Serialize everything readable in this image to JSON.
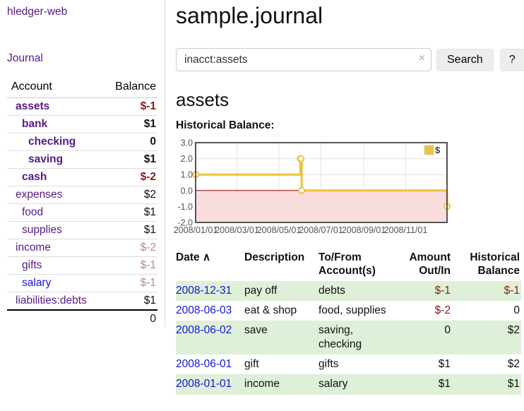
{
  "app": {
    "title": "hledger-web",
    "nav_journal": "Journal"
  },
  "sidebar": {
    "accounts_header": {
      "account": "Account",
      "balance": "Balance"
    },
    "accounts": [
      {
        "name": "assets",
        "depth": 1,
        "balance": "$-1",
        "bold": true,
        "negative": "strong"
      },
      {
        "name": "bank",
        "depth": 2,
        "balance": "$1",
        "bold": true
      },
      {
        "name": "checking",
        "depth": 3,
        "balance": "0",
        "bold": true
      },
      {
        "name": "saving",
        "depth": 3,
        "balance": "$1",
        "bold": true
      },
      {
        "name": "cash",
        "depth": 2,
        "balance": "$-2",
        "bold": true,
        "negative": "strong"
      },
      {
        "name": "expenses",
        "depth": 1,
        "balance": "$2"
      },
      {
        "name": "food",
        "depth": 2,
        "balance": "$1"
      },
      {
        "name": "supplies",
        "depth": 2,
        "balance": "$1"
      },
      {
        "name": "income",
        "depth": 1,
        "balance": "$-2",
        "negative": "soft"
      },
      {
        "name": "gifts",
        "depth": 2,
        "balance": "$-1",
        "negative": "soft"
      },
      {
        "name": "salary",
        "depth": 2,
        "balance": "$-1",
        "negative": "soft",
        "link_color": "blue"
      },
      {
        "name": "liabilities:debts",
        "depth": 1,
        "balance": "$1"
      }
    ],
    "total": "0"
  },
  "header": {
    "title": "sample.journal"
  },
  "search": {
    "value": "inacct:assets",
    "clear_icon": "×",
    "button": "Search",
    "help_button": "?"
  },
  "account_page": {
    "heading": "assets",
    "chart_label": "Historical Balance:"
  },
  "chart_data": {
    "type": "line",
    "step": true,
    "title": "Historical Balance:",
    "series": [
      {
        "name": "$",
        "points": [
          [
            "2008-01-01",
            1
          ],
          [
            "2008-06-01",
            2
          ],
          [
            "2008-06-02",
            2
          ],
          [
            "2008-06-03",
            0
          ],
          [
            "2008-12-31",
            -1
          ]
        ]
      }
    ],
    "ylim": [
      -2,
      3
    ],
    "yticks": [
      "3.0",
      "2.0",
      "1.0",
      "0.0",
      "-1.0",
      "-2.0"
    ],
    "xticks": [
      "2008/01/01",
      "2008/03/01",
      "2008/05/01",
      "2008/07/01",
      "2008/09/01",
      "2008/11/01"
    ],
    "x_range": [
      "2008-01-01",
      "2008-12-31"
    ],
    "legend": {
      "label": "$",
      "position": "top-right"
    },
    "grid": true,
    "negative_region_shaded": true
  },
  "register": {
    "columns": {
      "date": "Date",
      "description": "Description",
      "accounts": "To/From Account(s)",
      "amount": "Amount Out/In",
      "balance": "Historical Balance"
    },
    "sort_icon": "∧",
    "rows": [
      {
        "date": "2008-12-31",
        "description": "pay off",
        "accounts": "debts",
        "amount": "$-1",
        "balance": "$-1"
      },
      {
        "date": "2008-06-03",
        "description": "eat & shop",
        "accounts": "food, supplies",
        "amount": "$-2",
        "balance": "0"
      },
      {
        "date": "2008-06-02",
        "description": "save",
        "accounts": "saving, checking",
        "amount": "0",
        "balance": "$2"
      },
      {
        "date": "2008-06-01",
        "description": "gift",
        "accounts": "gifts",
        "amount": "$1",
        "balance": "$2"
      },
      {
        "date": "2008-01-01",
        "description": "income",
        "accounts": "salary",
        "amount": "$1",
        "balance": "$1"
      }
    ]
  },
  "colors": {
    "link_purple": "#551a8b",
    "link_blue": "#1414dd",
    "negative_strong": "#8b1a1a",
    "negative_soft": "#c08585",
    "row_green": "#dff0d8",
    "chart_line": "#edc240",
    "chart_negative_fill": "#fbdcdc",
    "chart_zero_line": "#800000",
    "chart_frame": "#545454",
    "chart_grid": "#e3e3e3",
    "chart_tick_text": "#545454"
  }
}
